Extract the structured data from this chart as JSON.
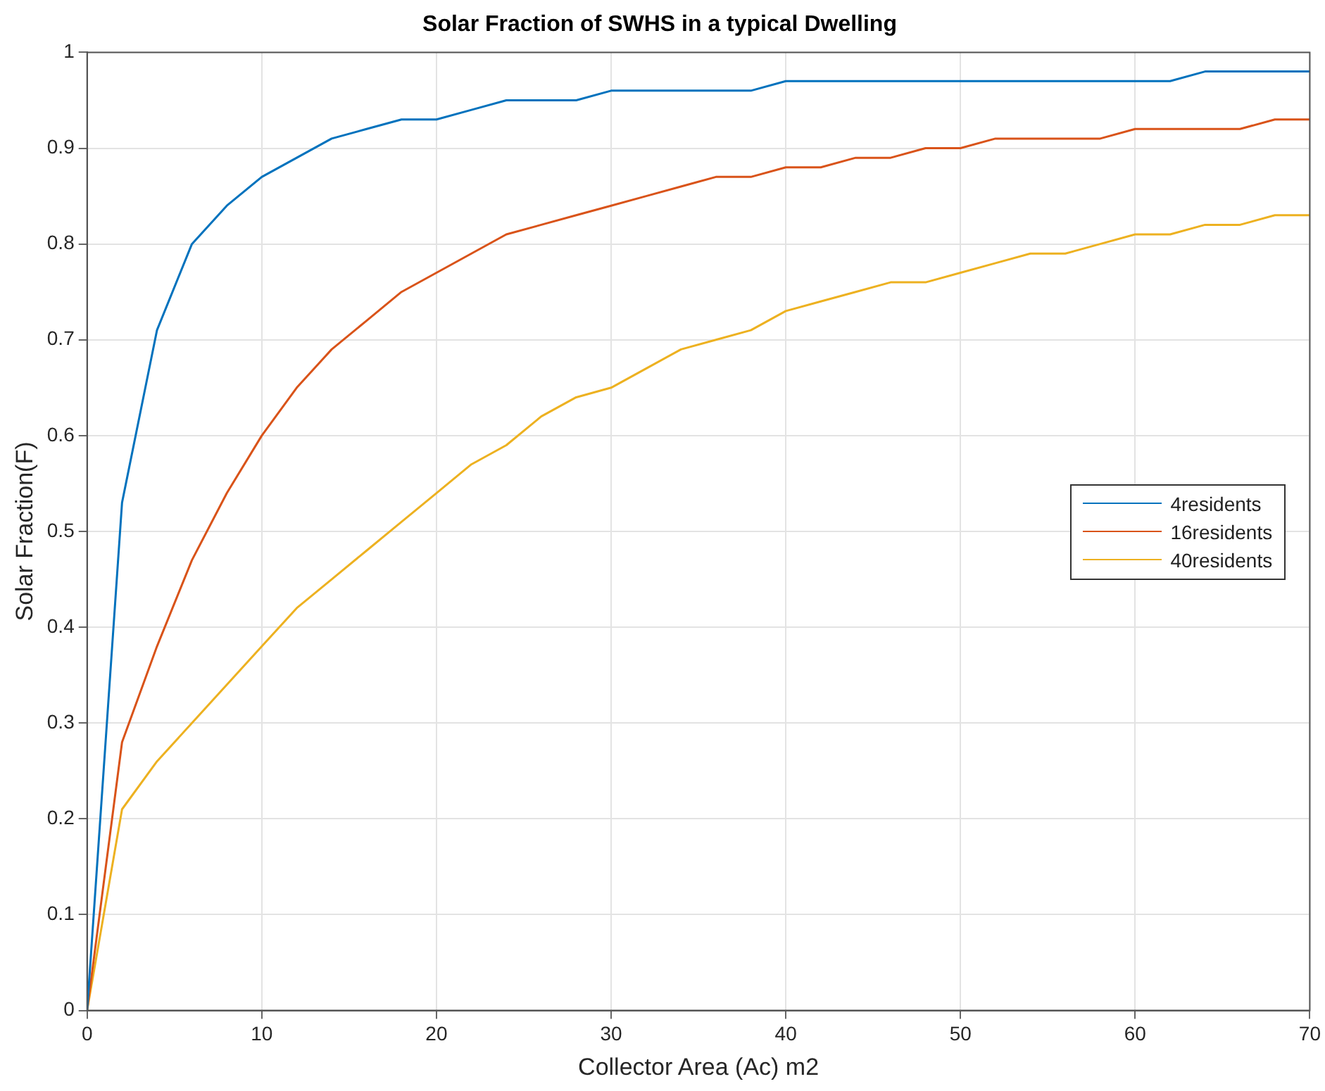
{
  "chart_data": {
    "type": "line",
    "title": "Solar Fraction of SWHS in a typical Dwelling",
    "xlabel": "Collector Area (Ac) m2",
    "ylabel": "Solar Fraction(F)",
    "x": [
      0,
      2,
      4,
      6,
      8,
      10,
      12,
      14,
      16,
      18,
      20,
      22,
      24,
      26,
      28,
      30,
      32,
      34,
      36,
      38,
      40,
      42,
      44,
      46,
      48,
      50,
      52,
      54,
      56,
      58,
      60,
      62,
      64,
      66,
      68,
      70
    ],
    "series": [
      {
        "name": "4residents",
        "color": "#0072bd",
        "values": [
          0,
          0.53,
          0.71,
          0.8,
          0.84,
          0.87,
          0.89,
          0.91,
          0.92,
          0.93,
          0.93,
          0.94,
          0.95,
          0.95,
          0.95,
          0.96,
          0.96,
          0.96,
          0.96,
          0.96,
          0.97,
          0.97,
          0.97,
          0.97,
          0.97,
          0.97,
          0.97,
          0.97,
          0.97,
          0.97,
          0.97,
          0.97,
          0.98,
          0.98,
          0.98,
          0.98
        ]
      },
      {
        "name": "16residents",
        "color": "#d95319",
        "values": [
          0,
          0.28,
          0.38,
          0.47,
          0.54,
          0.6,
          0.65,
          0.69,
          0.72,
          0.75,
          0.77,
          0.79,
          0.81,
          0.82,
          0.83,
          0.84,
          0.85,
          0.86,
          0.87,
          0.87,
          0.88,
          0.88,
          0.89,
          0.89,
          0.9,
          0.9,
          0.91,
          0.91,
          0.91,
          0.91,
          0.92,
          0.92,
          0.92,
          0.92,
          0.93,
          0.93
        ]
      },
      {
        "name": "40residents",
        "color": "#edb120",
        "values": [
          0,
          0.21,
          0.26,
          0.3,
          0.34,
          0.38,
          0.42,
          0.45,
          0.48,
          0.51,
          0.54,
          0.57,
          0.59,
          0.62,
          0.64,
          0.65,
          0.67,
          0.69,
          0.7,
          0.71,
          0.73,
          0.74,
          0.75,
          0.76,
          0.76,
          0.77,
          0.78,
          0.79,
          0.79,
          0.8,
          0.81,
          0.81,
          0.82,
          0.82,
          0.83,
          0.83
        ]
      }
    ],
    "xlim": [
      0,
      70
    ],
    "xticks": [
      0,
      10,
      20,
      30,
      40,
      50,
      60,
      70
    ],
    "ylim": [
      0,
      1
    ],
    "yticks": [
      0,
      0.1,
      0.2,
      0.3,
      0.4,
      0.5,
      0.6,
      0.7,
      0.8,
      0.9,
      1
    ],
    "grid": true,
    "legend": "right",
    "marker": "none",
    "line_style": "solid"
  }
}
